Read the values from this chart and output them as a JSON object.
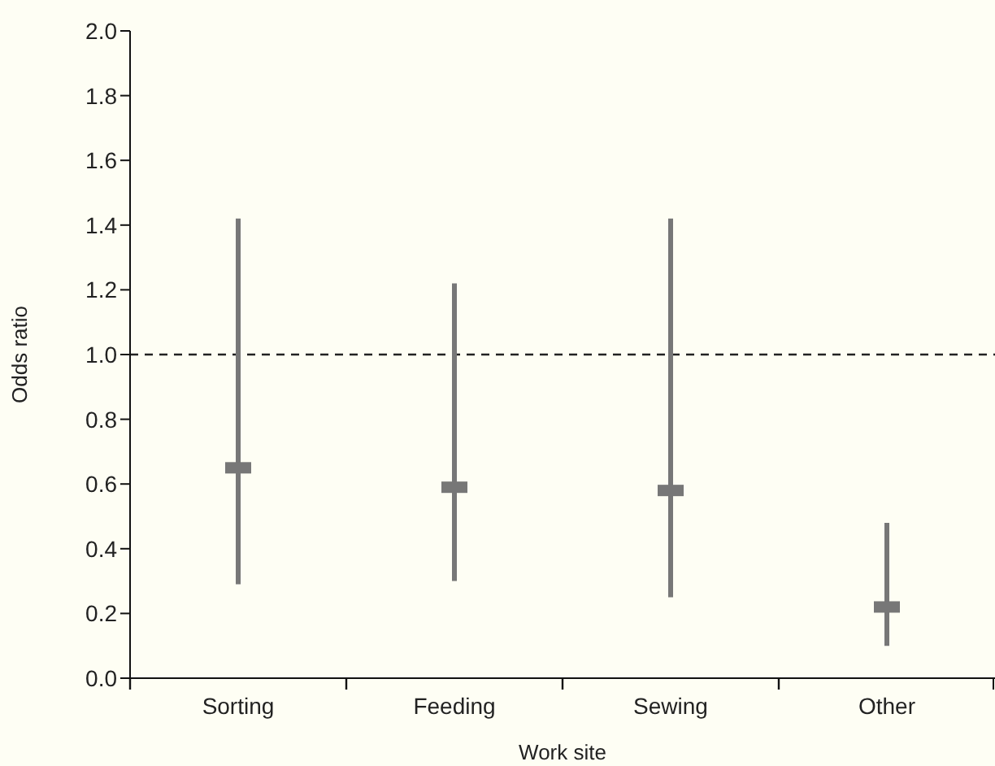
{
  "chart_data": {
    "type": "scatter",
    "xlabel": "Work site",
    "ylabel": "Odds ratio",
    "categories": [
      "Sorting",
      "Feeding",
      "Sewing",
      "Other"
    ],
    "values": [
      0.65,
      0.59,
      0.58,
      0.22
    ],
    "errors": [
      [
        0.29,
        1.42
      ],
      [
        0.3,
        1.22
      ],
      [
        0.25,
        1.42
      ],
      [
        0.1,
        0.48
      ]
    ],
    "color": "#777777",
    "marker": "square",
    "ylim": [
      0,
      2
    ],
    "yticks": [
      {
        "value": 0,
        "label": "0.0"
      },
      0.2,
      0.4,
      0.6,
      0.8,
      {
        "value": 1,
        "label": "1.0"
      },
      1.2,
      1.4,
      1.6,
      1.8,
      {
        "value": 2,
        "label": "2.0"
      }
    ],
    "ref_lines": [
      {
        "axis": "y",
        "value": 1,
        "color": "#222222",
        "line_style": "dashed"
      }
    ],
    "grid": false,
    "legend": false
  }
}
